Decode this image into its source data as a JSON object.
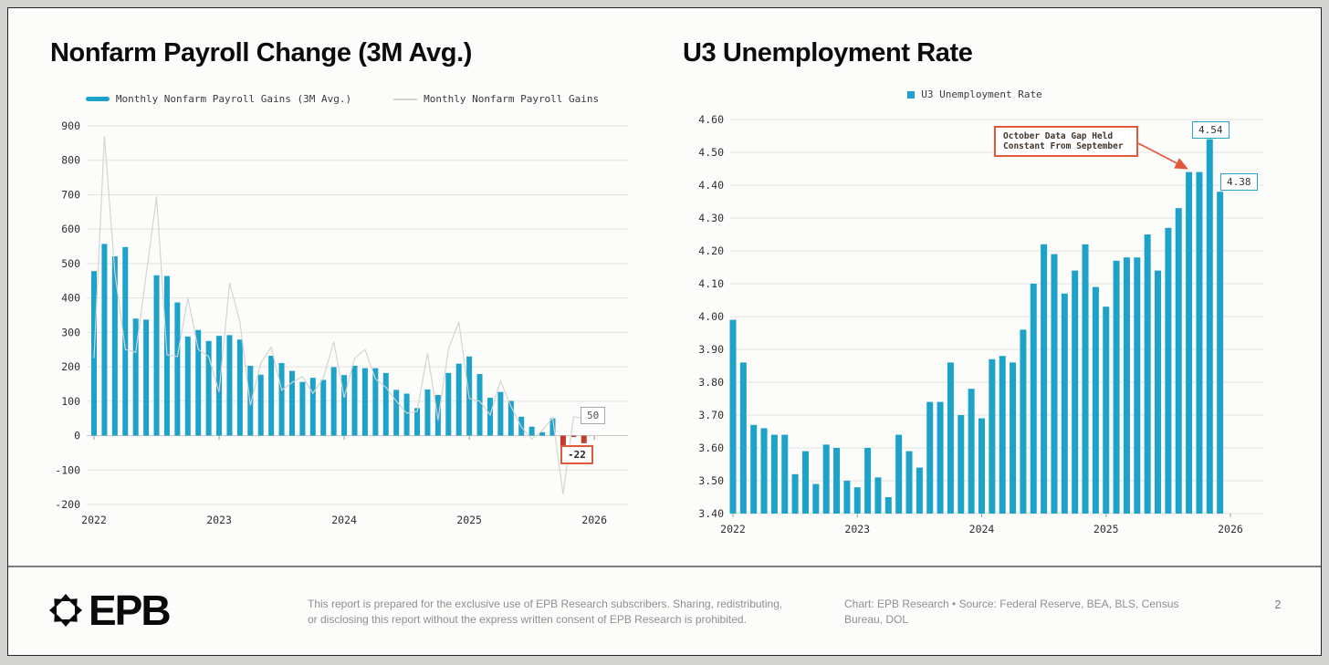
{
  "chart_data": [
    {
      "type": "bar",
      "title": "Nonfarm Payroll Change (3M Avg.)",
      "x_unit": "month",
      "x_start": "2022-01",
      "x_tick_labels": [
        "2022",
        "2023",
        "2024",
        "2025",
        "2026"
      ],
      "y_tick_labels": [
        "900",
        "800",
        "700",
        "600",
        "500",
        "400",
        "300",
        "200",
        "100",
        "0",
        "-100",
        "-200"
      ],
      "ylim": [
        -200,
        900
      ],
      "grid": true,
      "legend_position": "top",
      "legend": [
        {
          "label": "Monthly Nonfarm Payroll Gains (3M Avg.)",
          "swatch": "bar",
          "color": "#1da2c9"
        },
        {
          "label": "Monthly Nonfarm Payroll Gains",
          "swatch": "line",
          "color": "#d4d4d2"
        }
      ],
      "series": [
        {
          "name": "Monthly Nonfarm Payroll Gains (3M Avg.)",
          "type": "bar",
          "color": "#1da2c9",
          "negative_color": "#c43a2c",
          "values": [
            478,
            557,
            521,
            548,
            340,
            337,
            466,
            464,
            387,
            288,
            307,
            275,
            290,
            292,
            279,
            203,
            177,
            232,
            211,
            188,
            156,
            168,
            162,
            199,
            176,
            203,
            196,
            196,
            182,
            133,
            122,
            80,
            134,
            118,
            182,
            209,
            230,
            179,
            110,
            127,
            101,
            55,
            26,
            10,
            50,
            -33,
            -4,
            -22
          ]
        },
        {
          "name": "Monthly Nonfarm Payroll Gains",
          "type": "line",
          "color": "#d4d4d2",
          "values": [
            225,
            870,
            475,
            250,
            242,
            465,
            695,
            235,
            230,
            400,
            250,
            230,
            127,
            443,
            330,
            88,
            210,
            257,
            132,
            154,
            172,
            123,
            167,
            273,
            110,
            225,
            250,
            165,
            140,
            100,
            65,
            70,
            240,
            45,
            252,
            330,
            108,
            100,
            60,
            159,
            85,
            25,
            -10,
            15,
            52,
            -170,
            55,
            50
          ]
        }
      ],
      "labels": {
        "line_end": "50",
        "bar_end": "-22"
      }
    },
    {
      "type": "bar",
      "title": "U3 Unemployment Rate",
      "x_unit": "month",
      "x_start": "2022-01",
      "x_tick_labels": [
        "2022",
        "2023",
        "2024",
        "2025",
        "2026"
      ],
      "y_tick_labels": [
        "4.60",
        "4.50",
        "4.40",
        "4.30",
        "4.20",
        "4.10",
        "4.00",
        "3.90",
        "3.80",
        "3.70",
        "3.60",
        "3.50",
        "3.40"
      ],
      "ylim": [
        3.4,
        4.6
      ],
      "grid": true,
      "legend_position": "top",
      "legend": [
        {
          "label": "U3 Unemployment Rate",
          "swatch": "square",
          "color": "#1da2c9"
        }
      ],
      "series": [
        {
          "name": "U3 Unemployment Rate",
          "type": "bar",
          "color": "#1da2c9",
          "values": [
            3.99,
            3.86,
            3.67,
            3.66,
            3.64,
            3.64,
            3.52,
            3.59,
            3.49,
            3.61,
            3.6,
            3.5,
            3.48,
            3.6,
            3.51,
            3.45,
            3.64,
            3.59,
            3.54,
            3.74,
            3.74,
            3.86,
            3.7,
            3.78,
            3.69,
            3.87,
            3.88,
            3.86,
            3.96,
            4.1,
            4.22,
            4.19,
            4.07,
            4.14,
            4.22,
            4.09,
            4.03,
            4.17,
            4.18,
            4.18,
            4.25,
            4.14,
            4.27,
            4.33,
            4.44,
            4.44,
            4.54,
            4.38
          ]
        }
      ],
      "labels": {
        "peak_label": "4.54",
        "last_label": "4.38"
      },
      "annotation": {
        "line1": "October Data Gap Held",
        "line2": "Constant From September"
      }
    }
  ],
  "footer": {
    "brand": "EPB",
    "disclaimer_line1": "This report is prepared for the exclusive use of EPB Research subscribers. Sharing, redistributing,",
    "disclaimer_line2": "or disclosing this report without the express written consent of EPB Research is prohibited.",
    "source_line1": "Chart: EPB Research  •  Source: Federal Reserve, BEA, BLS, Census",
    "source_line2": "Bureau, DOL",
    "page_number": "2"
  }
}
